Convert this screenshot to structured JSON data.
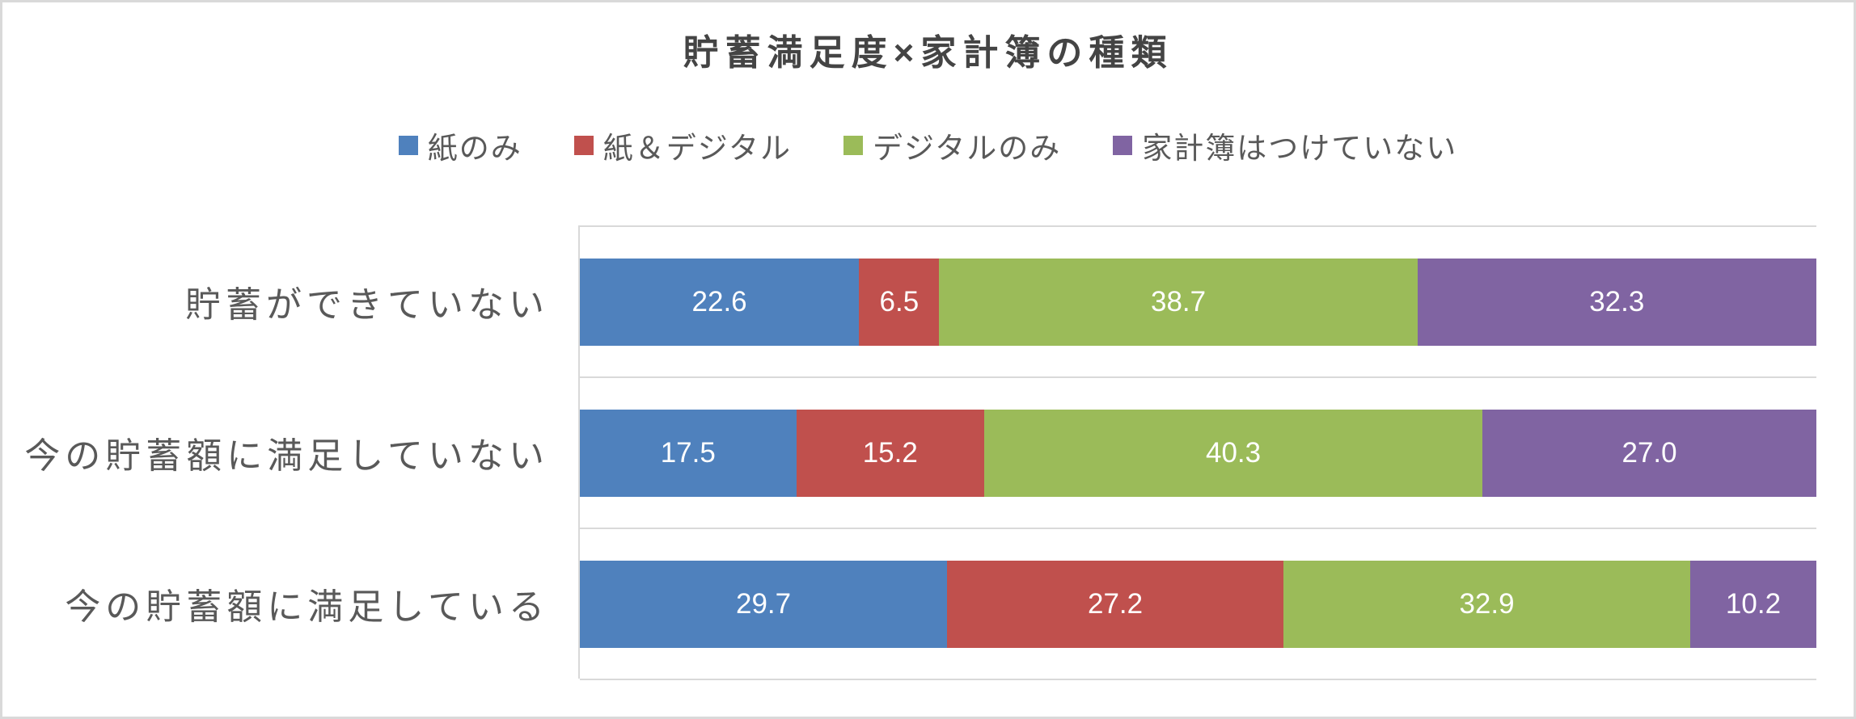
{
  "chart_data": {
    "type": "bar",
    "subtype": "horizontal-stacked-100",
    "title": "貯蓄満足度×家計簿の種類",
    "categories": [
      "貯蓄ができていない",
      "今の貯蓄額に満足していない",
      "今の貯蓄額に満足している"
    ],
    "series": [
      {
        "name": "紙のみ",
        "color": "#4F81BD",
        "values": [
          22.6,
          17.5,
          29.7
        ]
      },
      {
        "name": "紙＆デジタル",
        "color": "#C0504D",
        "values": [
          6.5,
          15.2,
          27.2
        ]
      },
      {
        "name": "デジタルのみ",
        "color": "#9BBB59",
        "values": [
          38.7,
          40.3,
          32.9
        ]
      },
      {
        "name": "家計簿はつけていない",
        "color": "#8064A2",
        "values": [
          32.3,
          27.0,
          10.2
        ]
      }
    ],
    "xlabel": "",
    "ylabel": "",
    "xlim": [
      0,
      100
    ],
    "legend_position": "top",
    "grid": "category-band-separators",
    "data_labels": "one-decimal-inside-white"
  },
  "colors": {
    "title_text": "#444444",
    "axis_text": "#595959",
    "gridline": "#D9D9D9",
    "data_label_text": "#FFFFFF",
    "background": "#FFFFFF"
  }
}
